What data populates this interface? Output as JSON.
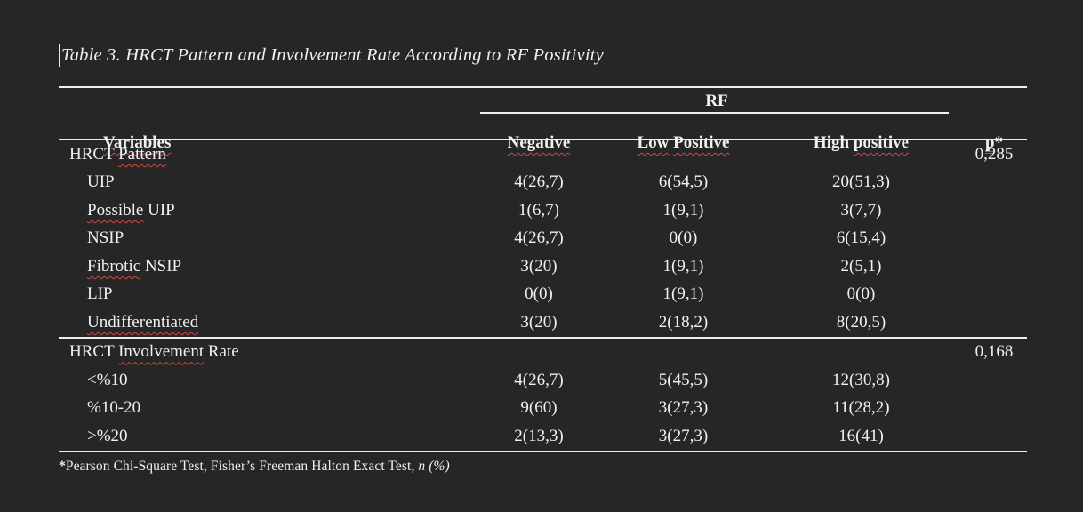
{
  "document": {
    "title": "Table 3. HRCT Pattern and Involvement Rate According to RF Positivity"
  },
  "table": {
    "spanner": "RF",
    "header": {
      "variables": "Variables",
      "negative": "Negative",
      "low_1": "Low",
      "low_2": "Positive",
      "high_pre": "High ",
      "high_marked": "positive",
      "p": "p",
      "star": "*"
    },
    "rows": [
      {
        "pre": "HRCT ",
        "marked": "Pattern",
        "post": "",
        "neg": "",
        "low": "",
        "high": "",
        "p": "0,285"
      },
      {
        "pre": "UIP",
        "marked": "",
        "post": "",
        "neg": "4(26,7)",
        "low": "6(54,5)",
        "high": "20(51,3)",
        "p": ""
      },
      {
        "pre": "",
        "marked": "Possible",
        "post": " UIP",
        "neg": "1(6,7)",
        "low": "1(9,1)",
        "high": "3(7,7)",
        "p": ""
      },
      {
        "pre": "NSIP",
        "marked": "",
        "post": "",
        "neg": "4(26,7)",
        "low": "0(0)",
        "high": "6(15,4)",
        "p": ""
      },
      {
        "pre": "",
        "marked": "Fibrotic",
        "post": " NSIP",
        "neg": "3(20)",
        "low": "1(9,1)",
        "high": "2(5,1)",
        "p": ""
      },
      {
        "pre": "LIP",
        "marked": "",
        "post": "",
        "neg": "0(0)",
        "low": "1(9,1)",
        "high": "0(0)",
        "p": ""
      },
      {
        "pre": "",
        "marked": "Undifferentiated",
        "post": "",
        "neg": "3(20)",
        "low": "2(18,2)",
        "high": "8(20,5)",
        "p": ""
      },
      {
        "pre": "HRCT ",
        "marked": "Involvement",
        "post": " Rate",
        "neg": "",
        "low": "",
        "high": "",
        "p": "0,168"
      },
      {
        "pre": "<%10",
        "marked": "",
        "post": "",
        "neg": "4(26,7)",
        "low": "5(45,5)",
        "high": "12(30,8)",
        "p": ""
      },
      {
        "pre": "%10-20",
        "marked": "",
        "post": "",
        "neg": "9(60)",
        "low": "3(27,3)",
        "high": "11(28,2)",
        "p": ""
      },
      {
        "pre": ">%20",
        "marked": "",
        "post": "",
        "neg": "2(13,3)",
        "low": "3(27,3)",
        "high": "16(41)",
        "p": ""
      }
    ],
    "footnote": {
      "star": "*",
      "text": "Pearson Chi-Square Test, Fisher’s Freeman Halton Exact Test, ",
      "italic": "n (%)"
    }
  },
  "colors": {
    "background": "#262626",
    "text": "#f1f1f1",
    "rule": "#efefef",
    "spellcheck_red": "#cf4a42",
    "grammar_blue": "#4a72c8"
  }
}
